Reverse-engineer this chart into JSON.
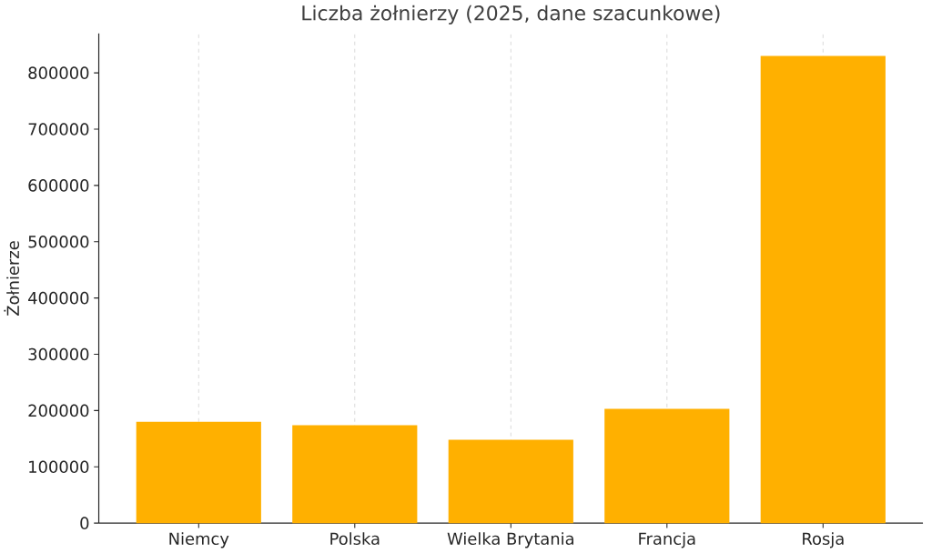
{
  "chart_data": {
    "type": "bar",
    "title": "Liczba żołnierzy (2025, dane szacunkowe)",
    "ylabel": "Żołnierze",
    "categories": [
      "Niemcy",
      "Polska",
      "Wielka Brytania",
      "Francja",
      "Rosja"
    ],
    "values": [
      180000,
      174000,
      148000,
      203000,
      830000
    ],
    "color": "#ffb000",
    "ylim": [
      0,
      870000
    ],
    "yticks": [
      0,
      100000,
      200000,
      300000,
      400000,
      500000,
      600000,
      700000,
      800000
    ],
    "grid": "x"
  }
}
